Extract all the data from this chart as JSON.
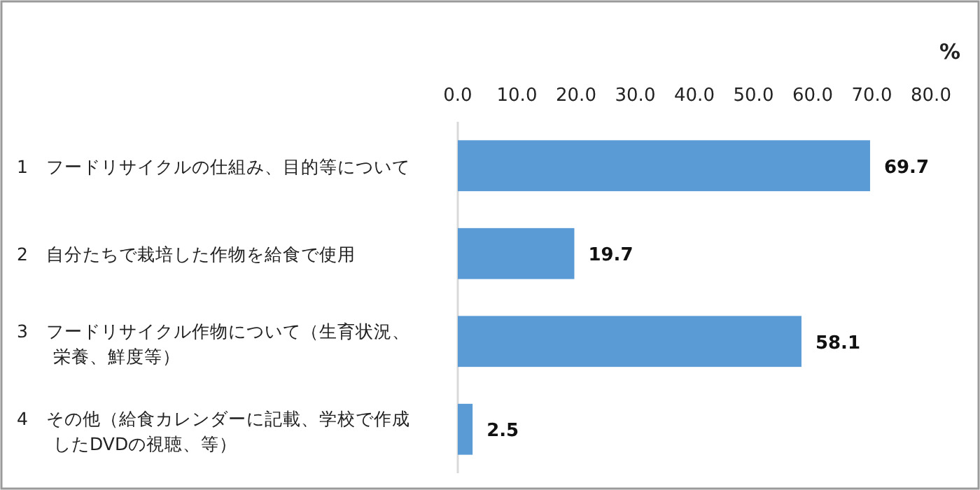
{
  "chart_data": {
    "type": "bar",
    "orientation": "horizontal",
    "xlabel": "%",
    "categories": [
      "1　フードリサイクルの仕組み、目的等について",
      "2　自分たちで栽培した作物を給食で使用",
      "3　フードリサイクル作物について（生育状況、栄養、鮮度等）",
      "4　その他（給食カレンダーに記載、学校で作成したDVDの視聴、等）"
    ],
    "values": [
      69.7,
      19.7,
      58.1,
      2.5
    ],
    "color": "#5b9bd5",
    "xlim": [
      0,
      80
    ],
    "xticks": [
      {
        "value": 0,
        "label": "0.0"
      },
      {
        "value": 10,
        "label": "10.0"
      },
      {
        "value": 20,
        "label": "20.0"
      },
      {
        "value": 30,
        "label": "30.0"
      },
      {
        "value": 40,
        "label": "40.0"
      },
      {
        "value": 50,
        "label": "50.0"
      },
      {
        "value": 60,
        "label": "60.0"
      },
      {
        "value": 70,
        "label": "70.0"
      },
      {
        "value": 80,
        "label": "80.0"
      }
    ],
    "data_labels": true,
    "grid": false
  }
}
